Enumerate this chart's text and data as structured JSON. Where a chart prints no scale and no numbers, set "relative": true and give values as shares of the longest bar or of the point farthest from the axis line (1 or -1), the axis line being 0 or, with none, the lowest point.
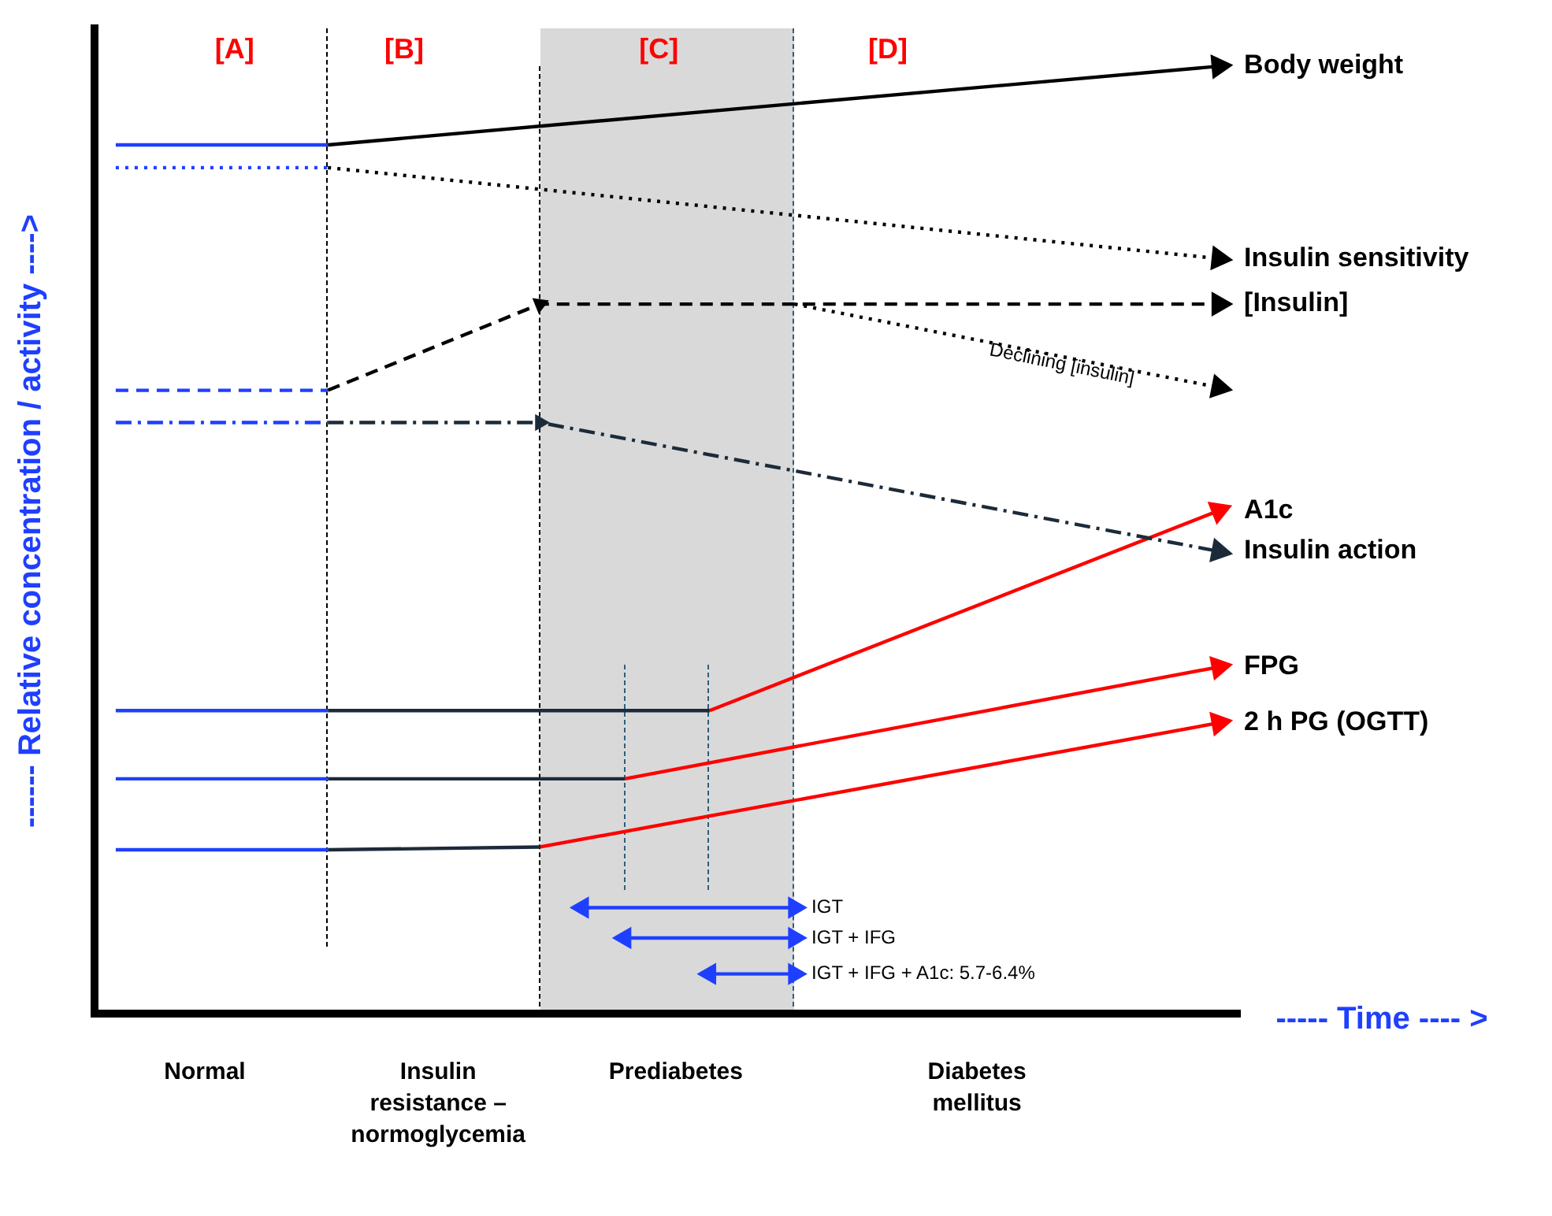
{
  "chart_data": {
    "type": "line",
    "relative": true,
    "ylabel": "------ Relative concentration / activity ---->",
    "xlabel": "----- Time ---- >",
    "grid": false,
    "legend": "right",
    "marker": "none",
    "categories": [
      null,
      null,
      null,
      null,
      null,
      null,
      null,
      null,
      null,
      null,
      null,
      null,
      null,
      null,
      null,
      null,
      null,
      null,
      null,
      null,
      null,
      null,
      null,
      null,
      null,
      null,
      null
    ],
    "annotations": [
      "[A]",
      "[B]",
      "[C]",
      "[D]",
      "Normal",
      "Insulin resistance – normoglycemia",
      "Prediabetes",
      "Diabetes mellitus",
      "Declining [insulin]",
      "IGT",
      "IGT + IFG",
      "IGT + IFG + A1c: 5.7-6.4%"
    ],
    "series": [
      {
        "color": "#1f3fff",
        "line_style": "solid",
        "values": [
          0.917,
          null,
          null,
          null,
          null,
          0.917,
          null,
          null,
          null,
          null,
          null,
          null,
          null,
          null,
          null,
          null,
          null,
          null,
          null,
          null,
          null,
          null,
          null,
          null,
          null,
          null,
          null
        ]
      },
      {
        "name": "Body weight",
        "color": "#000000",
        "line_style": "solid",
        "marker": "triangle",
        "values": [
          null,
          null,
          null,
          null,
          null,
          0.917,
          null,
          null,
          null,
          null,
          null,
          null,
          null,
          null,
          null,
          null,
          null,
          null,
          null,
          null,
          null,
          null,
          null,
          null,
          null,
          null,
          1.0
        ]
      },
      {
        "color": "#1f3fff",
        "line_style": "dotted",
        "values": [
          0.893,
          null,
          null,
          null,
          null,
          0.893,
          null,
          null,
          null,
          null,
          null,
          null,
          null,
          null,
          null,
          null,
          null,
          null,
          null,
          null,
          null,
          null,
          null,
          null,
          null,
          null,
          null
        ]
      },
      {
        "name": "Insulin sensitivity",
        "color": "#000000",
        "line_style": "dotted",
        "marker": "triangle",
        "values": [
          null,
          null,
          null,
          null,
          null,
          0.893,
          null,
          null,
          null,
          null,
          null,
          null,
          null,
          null,
          null,
          null,
          null,
          null,
          null,
          null,
          null,
          null,
          null,
          null,
          null,
          null,
          0.797
        ]
      },
      {
        "color": "#1f3fff",
        "line_style": "dashed",
        "values": [
          0.658,
          null,
          null,
          null,
          null,
          0.658,
          null,
          null,
          null,
          null,
          null,
          null,
          null,
          null,
          null,
          null,
          null,
          null,
          null,
          null,
          null,
          null,
          null,
          null,
          null,
          null,
          null
        ]
      },
      {
        "name": "[Insulin]",
        "color": "#000000",
        "line_style": "dashed",
        "marker": "triangle",
        "values": [
          null,
          null,
          null,
          null,
          null,
          0.658,
          null,
          null,
          null,
          null,
          0.749,
          null,
          null,
          null,
          null,
          null,
          null,
          null,
          null,
          null,
          null,
          null,
          null,
          null,
          null,
          null,
          0.749
        ]
      },
      {
        "color": "#000000",
        "line_style": "dotted",
        "marker": "triangle",
        "values": [
          null,
          null,
          null,
          null,
          null,
          null,
          null,
          null,
          null,
          null,
          null,
          null,
          null,
          null,
          null,
          null,
          0.749,
          null,
          null,
          null,
          null,
          null,
          null,
          null,
          null,
          null,
          0.661
        ]
      },
      {
        "color": "#1f3fff",
        "line_style": "dashdot",
        "values": [
          0.624,
          null,
          null,
          null,
          null,
          0.624,
          null,
          null,
          null,
          null,
          null,
          null,
          null,
          null,
          null,
          null,
          null,
          null,
          null,
          null,
          null,
          null,
          null,
          null,
          null,
          null,
          null
        ]
      },
      {
        "name": "Insulin action",
        "color": "#1c2b3a",
        "line_style": "dashdot",
        "marker": "triangle",
        "values": [
          null,
          null,
          null,
          null,
          null,
          0.624,
          null,
          null,
          null,
          null,
          0.624,
          null,
          null,
          null,
          null,
          null,
          null,
          null,
          null,
          null,
          null,
          null,
          null,
          null,
          null,
          null,
          0.488
        ]
      },
      {
        "color": "#1f3fff",
        "line_style": "solid",
        "values": [
          0.32,
          null,
          null,
          null,
          null,
          0.32,
          null,
          null,
          null,
          null,
          null,
          null,
          null,
          null,
          null,
          null,
          null,
          null,
          null,
          null,
          null,
          null,
          null,
          null,
          null,
          null,
          null
        ]
      },
      {
        "color": "#1c2b3a",
        "line_style": "solid",
        "values": [
          null,
          null,
          null,
          null,
          null,
          0.32,
          null,
          null,
          null,
          null,
          null,
          null,
          null,
          null,
          0.32,
          null,
          null,
          null,
          null,
          null,
          null,
          null,
          null,
          null,
          null,
          null,
          null
        ]
      },
      {
        "name": "A1c",
        "color": "#ff0000",
        "line_style": "solid",
        "marker": "triangle",
        "values": [
          null,
          null,
          null,
          null,
          null,
          null,
          null,
          null,
          null,
          null,
          null,
          null,
          null,
          null,
          0.32,
          null,
          null,
          null,
          null,
          null,
          null,
          null,
          null,
          null,
          null,
          null,
          0.531
        ]
      },
      {
        "color": "#1f3fff",
        "line_style": "solid",
        "values": [
          0.248,
          null,
          null,
          null,
          null,
          0.248,
          null,
          null,
          null,
          null,
          null,
          null,
          null,
          null,
          null,
          null,
          null,
          null,
          null,
          null,
          null,
          null,
          null,
          null,
          null,
          null,
          null
        ]
      },
      {
        "color": "#1c2b3a",
        "line_style": "solid",
        "values": [
          null,
          null,
          null,
          null,
          null,
          0.248,
          null,
          null,
          null,
          null,
          null,
          null,
          0.248,
          null,
          null,
          null,
          null,
          null,
          null,
          null,
          null,
          null,
          null,
          null,
          null,
          null,
          null
        ]
      },
      {
        "name": "FPG",
        "color": "#ff0000",
        "line_style": "solid",
        "marker": "triangle",
        "values": [
          null,
          null,
          null,
          null,
          null,
          null,
          null,
          null,
          null,
          null,
          null,
          null,
          0.248,
          null,
          null,
          null,
          null,
          null,
          null,
          null,
          null,
          null,
          null,
          null,
          null,
          null,
          0.366
        ]
      },
      {
        "color": "#1f3fff",
        "line_style": "solid",
        "values": [
          0.173,
          null,
          null,
          null,
          null,
          0.173,
          null,
          null,
          null,
          null,
          null,
          null,
          null,
          null,
          null,
          null,
          null,
          null,
          null,
          null,
          null,
          null,
          null,
          null,
          null,
          null,
          null
        ]
      },
      {
        "color": "#1c2b3a",
        "line_style": "solid",
        "values": [
          null,
          null,
          null,
          null,
          null,
          0.173,
          null,
          null,
          null,
          null,
          0.176,
          null,
          null,
          null,
          null,
          null,
          null,
          null,
          null,
          null,
          null,
          null,
          null,
          null,
          null,
          null,
          null
        ]
      },
      {
        "name": "2 h PG (OGTT)",
        "color": "#ff0000",
        "line_style": "solid",
        "marker": "triangle",
        "values": [
          null,
          null,
          null,
          null,
          null,
          null,
          null,
          null,
          null,
          null,
          0.176,
          null,
          null,
          null,
          null,
          null,
          null,
          null,
          null,
          null,
          null,
          null,
          null,
          null,
          null,
          null,
          0.307
        ]
      },
      {
        "color": "#1f3fff",
        "line_style": "solid",
        "marker": "triangle",
        "values": [
          null,
          null,
          null,
          null,
          null,
          null,
          null,
          null,
          null,
          null,
          null,
          0.112,
          null,
          null,
          null,
          null,
          0.112,
          null,
          null,
          null,
          null,
          null,
          null,
          null,
          null,
          null,
          null
        ]
      },
      {
        "color": "#1f3fff",
        "line_style": "solid",
        "marker": "triangle",
        "values": [
          null,
          null,
          null,
          null,
          null,
          null,
          null,
          null,
          null,
          null,
          null,
          null,
          0.08,
          null,
          null,
          null,
          0.08,
          null,
          null,
          null,
          null,
          null,
          null,
          null,
          null,
          null,
          null
        ]
      },
      {
        "color": "#1f3fff",
        "line_style": "solid",
        "marker": "triangle",
        "values": [
          null,
          null,
          null,
          null,
          null,
          null,
          null,
          null,
          null,
          null,
          null,
          null,
          null,
          null,
          0.042,
          null,
          0.042,
          null,
          null,
          null,
          null,
          null,
          null,
          null,
          null,
          null,
          null
        ]
      }
    ]
  }
}
